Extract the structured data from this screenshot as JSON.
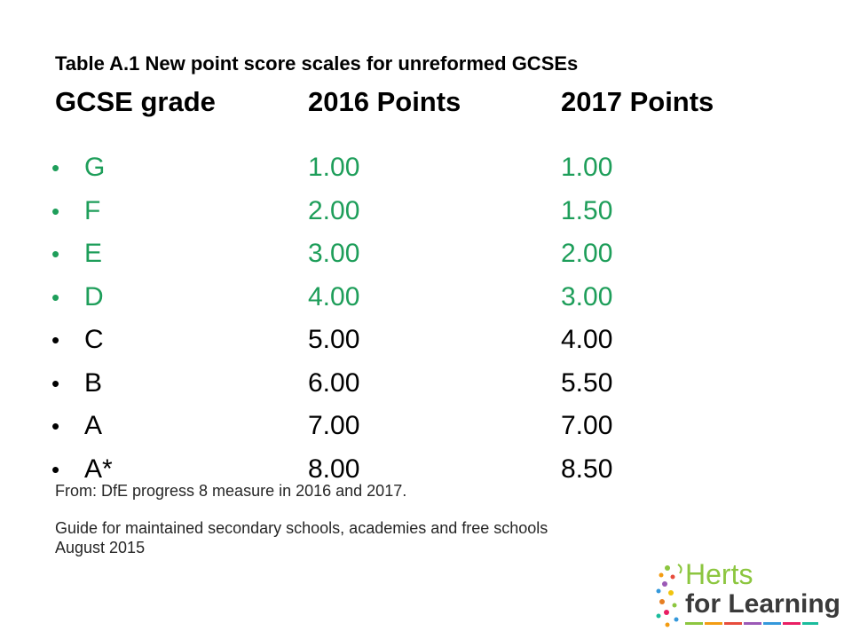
{
  "title": "Table A.1 New point score scales for unreformed GCSEs",
  "header": {
    "col1": "GCSE grade",
    "col2": "2016 Points",
    "col3": "2017 Points"
  },
  "colors": {
    "highlight": "#1e9e5a",
    "default_text": "#000000",
    "logo_green": "#8cc63f",
    "logo_dark": "#3a3a3a"
  },
  "grades": [
    {
      "bullet": "•",
      "grade": "G",
      "points_2016": "1.00",
      "points_2017": "1.00",
      "highlight": true
    },
    {
      "bullet": "•",
      "grade": "F",
      "points_2016": "2.00",
      "points_2017": "1.50",
      "highlight": true
    },
    {
      "bullet": "•",
      "grade": "E",
      "points_2016": "3.00",
      "points_2017": "2.00",
      "highlight": true
    },
    {
      "bullet": "•",
      "grade": "D",
      "points_2016": "4.00",
      "points_2017": "3.00",
      "highlight": true
    },
    {
      "bullet": "•",
      "grade": "C",
      "points_2016": "5.00",
      "points_2017": "4.00",
      "highlight": false
    },
    {
      "bullet": "•",
      "grade": "B",
      "points_2016": "6.00",
      "points_2017": "5.50",
      "highlight": false
    },
    {
      "bullet": "•",
      "grade": "A",
      "points_2016": "7.00",
      "points_2017": "7.00",
      "highlight": false
    },
    {
      "bullet": "•",
      "grade": "A*",
      "points_2016": "8.00",
      "points_2017": "8.50",
      "highlight": false
    }
  ],
  "source": "From: DfE progress 8 measure in 2016 and 2017.",
  "guide": {
    "line1": "Guide for maintained secondary schools, academies and free schools",
    "line2": "August 2015"
  },
  "logo": {
    "line1": "Herts",
    "line2": "for Learning",
    "icon": "herts-for-learning-logo-art"
  }
}
